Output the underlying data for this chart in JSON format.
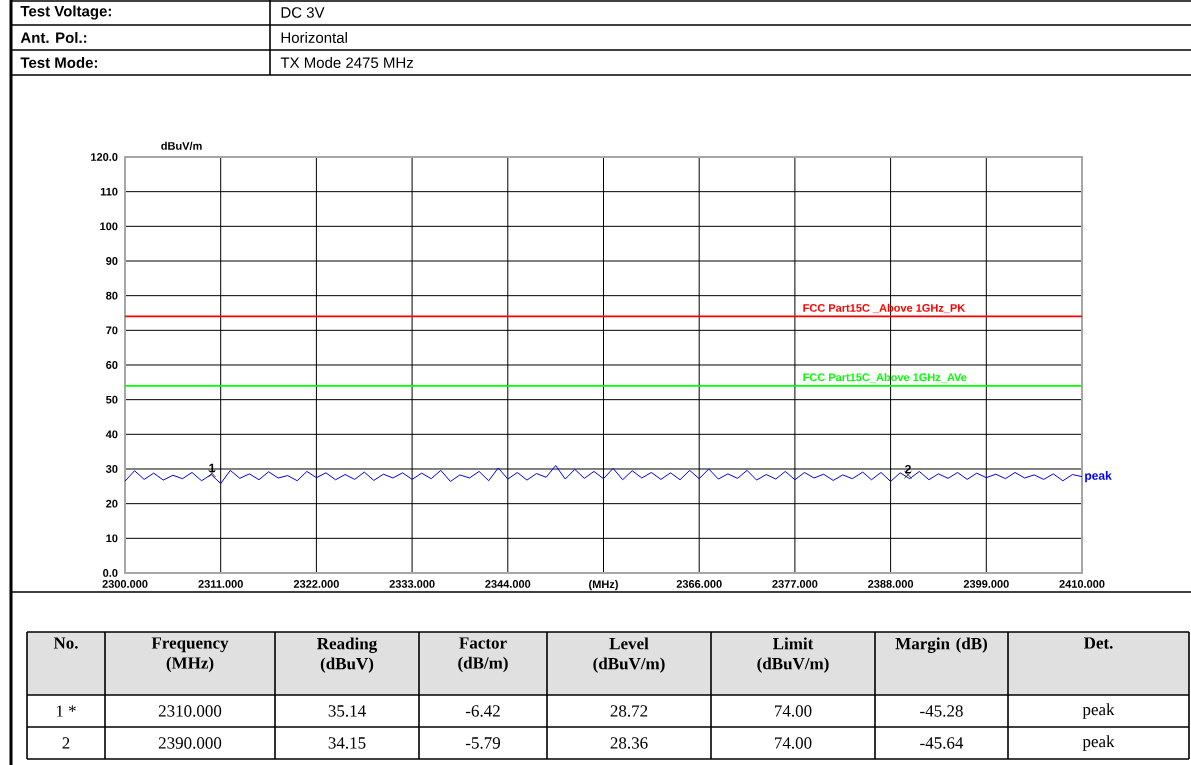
{
  "chart_data": {
    "type": "line",
    "ylabel": "dBuV/m",
    "x": [
      2300,
      2301.1,
      2302.2,
      2303.3,
      2304.4,
      2305.5,
      2306.6,
      2307.7,
      2308.8,
      2309.9,
      2311,
      2312.1,
      2313.2,
      2314.3,
      2315.4,
      2316.5,
      2317.6,
      2318.7,
      2319.8,
      2320.9,
      2322,
      2323.1,
      2324.2,
      2325.3,
      2326.4,
      2327.5,
      2328.6,
      2329.7,
      2330.8,
      2331.9,
      2333,
      2334.1,
      2335.2,
      2336.3,
      2337.4,
      2338.5,
      2339.6,
      2340.7,
      2341.8,
      2342.9,
      2344,
      2345.1,
      2346.2,
      2347.3,
      2348.4,
      2349.5,
      2350.6,
      2351.7,
      2352.8,
      2353.9,
      2355,
      2356.1,
      2357.2,
      2358.3,
      2359.4,
      2360.5,
      2361.6,
      2362.7,
      2363.8,
      2364.9,
      2366,
      2367.1,
      2368.2,
      2369.3,
      2370.4,
      2371.5,
      2372.6,
      2373.7,
      2374.8,
      2375.9,
      2377,
      2378.1,
      2379.2,
      2380.3,
      2381.4,
      2382.5,
      2383.6,
      2384.8,
      2385.8,
      2386.9,
      2388,
      2389.1,
      2390.2,
      2391.3,
      2392.4,
      2393.5,
      2394.6,
      2395.7,
      2396.8,
      2397.9,
      2399,
      2400.1,
      2401.2,
      2402.3,
      2403.4,
      2404.5,
      2405.6,
      2406.7,
      2407.8,
      2408.9,
      2410
    ],
    "series": [
      {
        "name": "peak",
        "color": "#0000ff",
        "values": [
          26.5,
          29.5,
          27.0,
          28.8,
          26.8,
          28.2,
          27.2,
          29.0,
          26.6,
          28.4,
          25.8,
          29.6,
          27.3,
          28.6,
          26.9,
          29.2,
          27.4,
          28.1,
          26.6,
          29.3,
          27.5,
          28.9,
          26.9,
          28.4,
          27.0,
          29.1,
          26.7,
          28.5,
          27.4,
          28.9,
          27.0,
          28.8,
          27.2,
          29.6,
          26.4,
          28.3,
          27.4,
          29.3,
          26.6,
          30.3,
          27.1,
          29.0,
          26.8,
          28.7,
          27.6,
          31.0,
          27.1,
          29.9,
          27.3,
          29.3,
          27.2,
          30.2,
          26.9,
          29.5,
          27.4,
          29.0,
          27.0,
          28.9,
          26.9,
          29.6,
          27.2,
          30.0,
          27.1,
          28.6,
          27.3,
          29.6,
          26.8,
          28.4,
          27.1,
          29.3,
          26.9,
          29.0,
          27.4,
          28.5,
          26.7,
          28.3,
          27.2,
          29.1,
          26.9,
          29.0,
          26.4,
          28.9,
          27.2,
          29.3,
          26.9,
          28.6,
          27.3,
          29.0,
          27.0,
          28.8,
          27.5,
          28.5,
          27.2,
          29.0,
          27.4,
          28.3,
          27.0,
          28.6,
          26.6,
          28.4,
          27.8
        ]
      }
    ],
    "xlim": [
      2300,
      2410
    ],
    "ylim": [
      0,
      120
    ],
    "xticks": [
      {
        "value": 2300,
        "label": "2300.000"
      },
      {
        "value": 2311,
        "label": "2311.000"
      },
      {
        "value": 2322,
        "label": "2322.000"
      },
      {
        "value": 2333,
        "label": "2333.000"
      },
      {
        "value": 2344,
        "label": "2344.000"
      },
      {
        "value": 2355,
        "label": "(MHz)"
      },
      {
        "value": 2366,
        "label": "2366.000"
      },
      {
        "value": 2377,
        "label": "2377.000"
      },
      {
        "value": 2388,
        "label": "2388.000"
      },
      {
        "value": 2399,
        "label": "2399.000"
      },
      {
        "value": 2410,
        "label": "2410.000"
      }
    ],
    "yticks": [
      {
        "value": 0,
        "label": "0.0"
      },
      10,
      20,
      30,
      40,
      50,
      60,
      70,
      80,
      90,
      100,
      110,
      {
        "value": 120,
        "label": "120.0"
      }
    ],
    "grid": true,
    "marker": "none",
    "line_style": "solid",
    "ref_lines": [
      {
        "axis": "y",
        "value": 74,
        "label": "FCC Part15C _Above 1GHz_PK",
        "color": "#ff0000"
      },
      {
        "axis": "y",
        "value": 54,
        "label": "FCC Part15C_Above 1GHz_AVe",
        "color": "#00ff00"
      }
    ],
    "annotations": [
      {
        "text": "1",
        "x": 2310,
        "y": 28.72
      },
      {
        "text": "2",
        "x": 2390,
        "y": 28.36
      },
      "Test Voltage:",
      "DC 3V",
      "Ant. Pol.:",
      "Horizontal",
      "Test Mode:",
      "TX Mode 2475 MHz",
      "No.",
      "Frequency (MHz)",
      "Reading (dBuV)",
      "Factor (dB/m)",
      "Level (dBuV/m)",
      "Limit (dBuV/m)",
      "Margin (dB)",
      "Det.",
      "1 *",
      "2310.000",
      "35.14",
      "-6.42",
      "28.72",
      "74.00",
      "-45.28",
      "peak",
      "2",
      "2390.000",
      "34.15",
      "-5.79",
      "28.36",
      "74.00",
      "-45.64",
      "peak"
    ]
  }
}
